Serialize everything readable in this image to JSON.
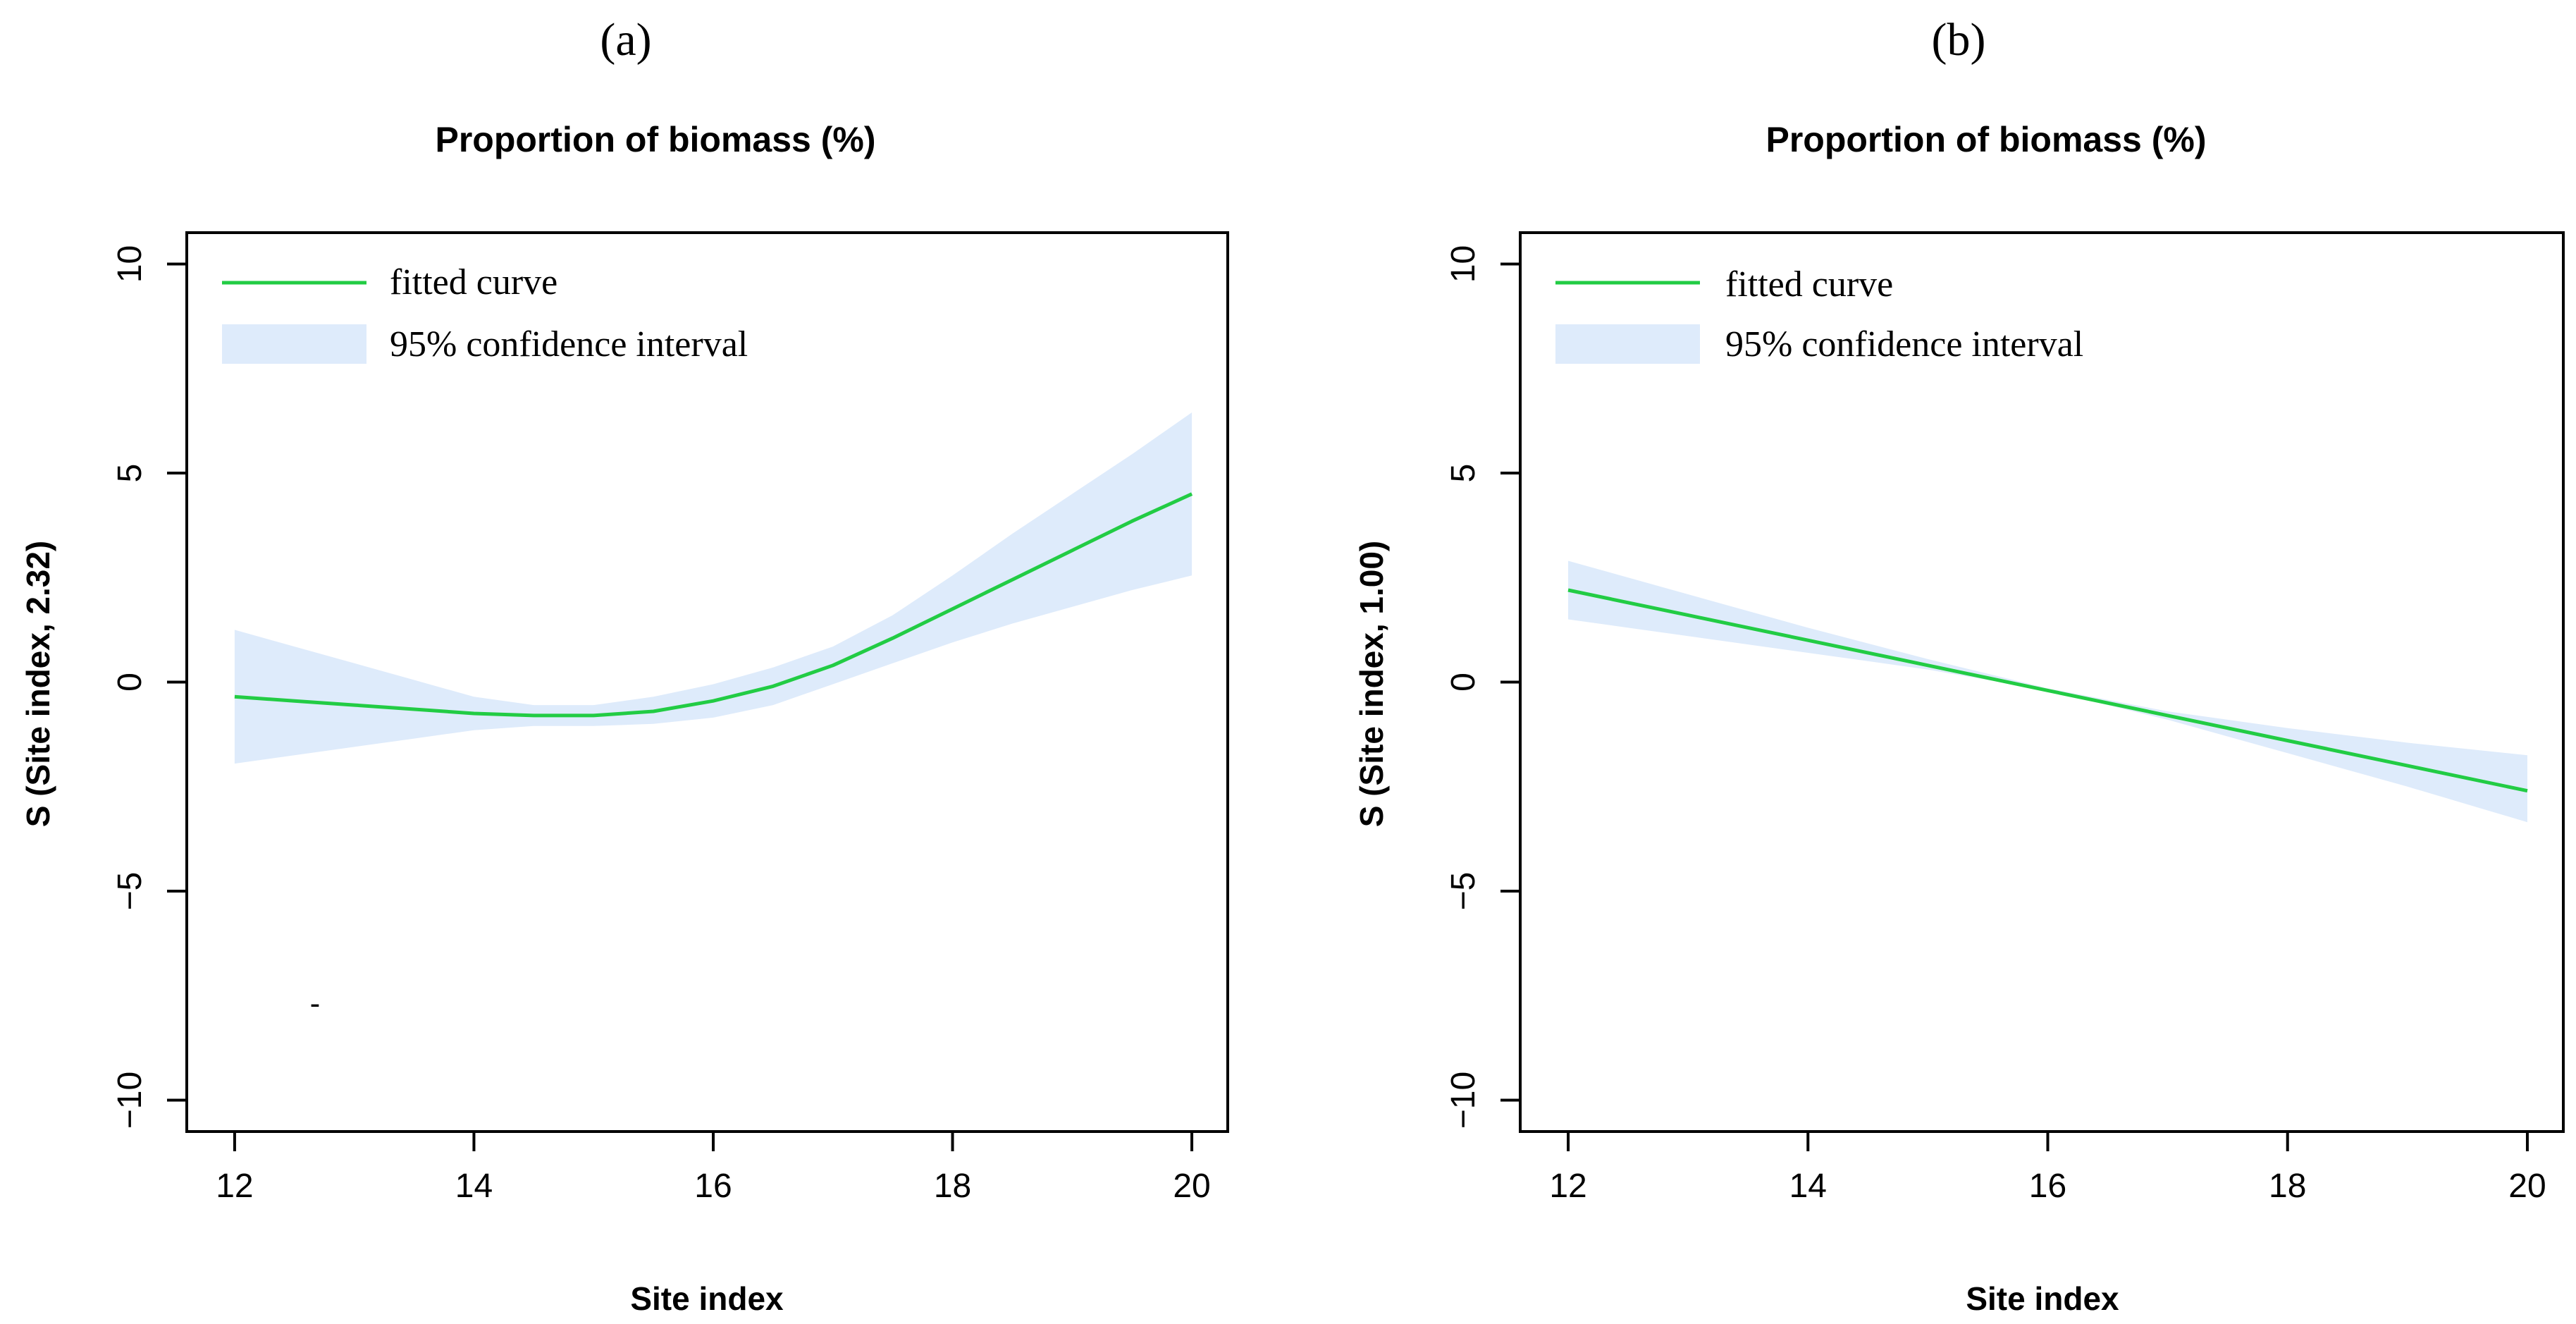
{
  "colors": {
    "curve": "#22cc44",
    "band": "#deebfb",
    "axis": "#000000"
  },
  "chart_data": [
    {
      "type": "line",
      "panel_label": "(a)",
      "title": "Proportion of biomass (%)",
      "xlabel": "Site index",
      "ylabel": "S (Site index, 2.32)",
      "xlim": [
        11.6,
        20.3
      ],
      "ylim": [
        -10.75,
        10.75
      ],
      "x_ticks": [
        12,
        14,
        16,
        18,
        20
      ],
      "y_ticks": [
        -10,
        -5,
        0,
        5,
        10
      ],
      "x_tick_labels": [
        "12",
        "14",
        "16",
        "18",
        "20"
      ],
      "y_tick_labels": [
        "−10",
        "−5",
        "0",
        "5",
        "10"
      ],
      "legend": {
        "position": "top-left",
        "entries": [
          "fitted curve",
          "95% confidence interval"
        ]
      },
      "series": [
        {
          "name": "fitted curve",
          "x": [
            12,
            12.5,
            13,
            13.5,
            14,
            14.5,
            15,
            15.5,
            16,
            16.5,
            17,
            17.5,
            18,
            18.5,
            19,
            19.5,
            20
          ],
          "y": [
            -0.35,
            -0.45,
            -0.55,
            -0.65,
            -0.75,
            -0.8,
            -0.8,
            -0.7,
            -0.45,
            -0.1,
            0.4,
            1.05,
            1.75,
            2.45,
            3.15,
            3.85,
            4.5
          ]
        },
        {
          "name": "95% confidence interval",
          "x": [
            12,
            12.5,
            13,
            13.5,
            14,
            14.5,
            15,
            15.5,
            16,
            16.5,
            17,
            17.5,
            18,
            18.5,
            19,
            19.5,
            20
          ],
          "lower": [
            -1.95,
            -1.75,
            -1.55,
            -1.35,
            -1.15,
            -1.05,
            -1.05,
            -1.0,
            -0.85,
            -0.55,
            -0.05,
            0.45,
            0.95,
            1.4,
            1.8,
            2.2,
            2.55
          ],
          "upper": [
            1.25,
            0.85,
            0.45,
            0.05,
            -0.35,
            -0.55,
            -0.55,
            -0.35,
            -0.05,
            0.35,
            0.85,
            1.6,
            2.55,
            3.55,
            4.5,
            5.45,
            6.45
          ]
        }
      ],
      "annotations": [
        {
          "text": "-",
          "x": 12.7,
          "y": -7.8
        }
      ]
    },
    {
      "type": "line",
      "panel_label": "(b)",
      "title": "Proportion of biomass (%)",
      "xlabel": "Site index",
      "ylabel": "S (Site index, 1.00)",
      "xlim": [
        11.6,
        20.3
      ],
      "ylim": [
        -10.75,
        10.75
      ],
      "x_ticks": [
        12,
        14,
        16,
        18,
        20
      ],
      "y_ticks": [
        -10,
        -5,
        0,
        5,
        10
      ],
      "x_tick_labels": [
        "12",
        "14",
        "16",
        "18",
        "20"
      ],
      "y_tick_labels": [
        "−10",
        "−5",
        "0",
        "5",
        "10"
      ],
      "legend": {
        "position": "top-left",
        "entries": [
          "fitted curve",
          "95% confidence interval"
        ]
      },
      "series": [
        {
          "name": "fitted curve",
          "x": [
            12,
            13,
            14,
            15,
            16,
            17,
            18,
            19,
            20
          ],
          "y": [
            2.2,
            1.6,
            1.0,
            0.4,
            -0.2,
            -0.8,
            -1.4,
            -2.0,
            -2.6
          ]
        },
        {
          "name": "95% confidence interval",
          "x": [
            12,
            13,
            14,
            15,
            16,
            17,
            18,
            19,
            20
          ],
          "lower": [
            1.5,
            1.1,
            0.7,
            0.3,
            -0.2,
            -0.9,
            -1.7,
            -2.5,
            -3.35
          ],
          "upper": [
            2.9,
            2.1,
            1.3,
            0.55,
            -0.15,
            -0.7,
            -1.1,
            -1.45,
            -1.75
          ]
        }
      ],
      "annotations": []
    }
  ]
}
